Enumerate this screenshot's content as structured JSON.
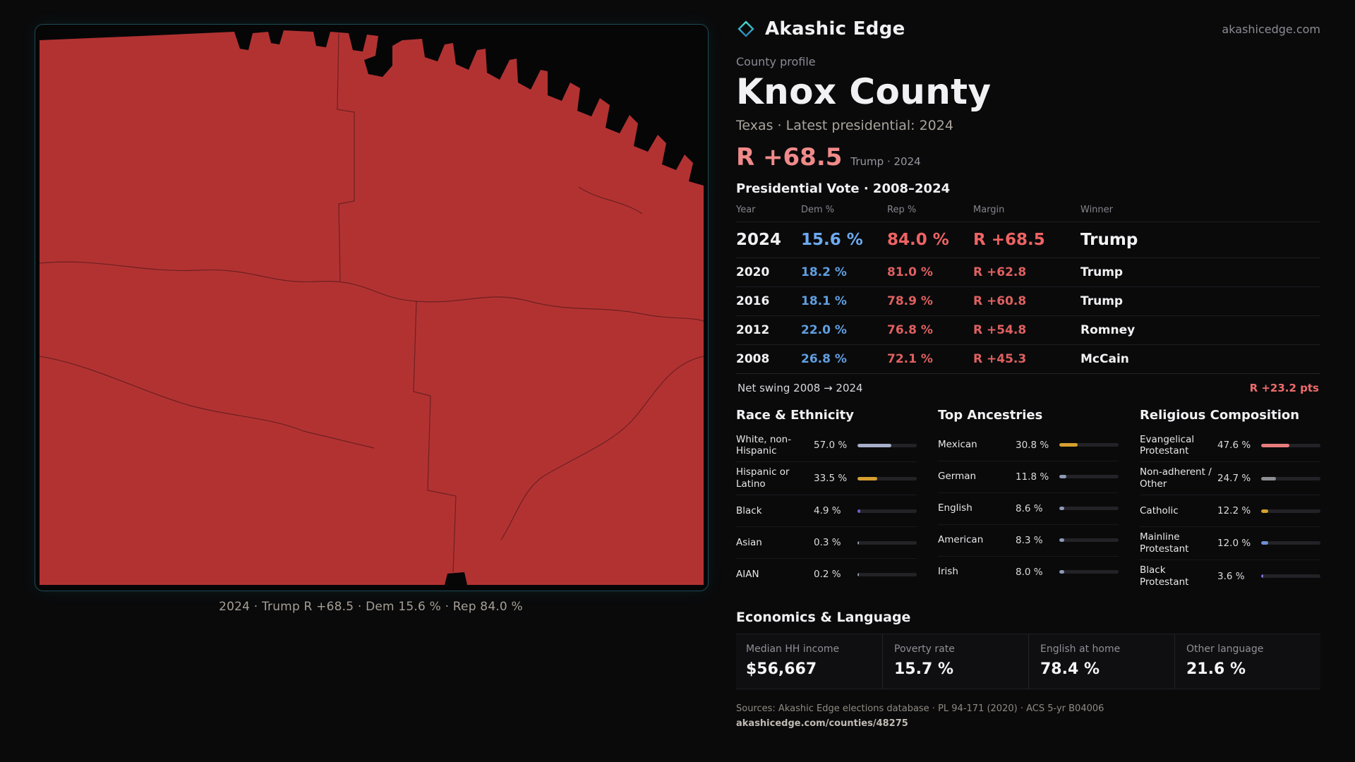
{
  "colors": {
    "accent": "#f08a8a",
    "dem_blue": "#5f9fe0",
    "rep_red": "#e06060",
    "map_fill": "#b23232",
    "teal": "#3ad6c8",
    "page_bg": "#0a0a0b"
  },
  "brand": {
    "name": "Akashic Edge",
    "domain": "akashicedge.com"
  },
  "map": {
    "fill": "#b23232",
    "caption": "2024 · Trump R +68.5 · Dem 15.6 % · Rep 84.0 %"
  },
  "profile": {
    "kicker": "County profile",
    "title": "Knox County",
    "subtitle": "Texas · Latest presidential: 2024",
    "headline_margin": "R +68.5",
    "headline_note": "Trump · 2024"
  },
  "vote_table": {
    "title": "Presidential Vote · 2008–2024",
    "columns": [
      "Year",
      "Dem %",
      "Rep %",
      "Margin",
      "Winner"
    ],
    "rows": [
      {
        "year": "2024",
        "dem": "15.6 %",
        "rep": "84.0 %",
        "margin": "R +68.5",
        "winner": "Trump",
        "highlight": true
      },
      {
        "year": "2020",
        "dem": "18.2 %",
        "rep": "81.0 %",
        "margin": "R +62.8",
        "winner": "Trump",
        "highlight": false
      },
      {
        "year": "2016",
        "dem": "18.1 %",
        "rep": "78.9 %",
        "margin": "R +60.8",
        "winner": "Trump",
        "highlight": false
      },
      {
        "year": "2012",
        "dem": "22.0 %",
        "rep": "76.8 %",
        "margin": "R +54.8",
        "winner": "Romney",
        "highlight": false
      },
      {
        "year": "2008",
        "dem": "26.8 %",
        "rep": "72.1 %",
        "margin": "R +45.3",
        "winner": "McCain",
        "highlight": false
      }
    ],
    "net_swing_label": "Net swing 2008 → 2024",
    "net_swing_value": "R +23.2 pts"
  },
  "demographics": [
    {
      "title": "Race & Ethnicity",
      "rows": [
        {
          "label": "White, non-Hispanic",
          "value": "57.0 %",
          "pct": 57.0,
          "color": "#a6aec9"
        },
        {
          "label": "Hispanic or Latino",
          "value": "33.5 %",
          "pct": 33.5,
          "color": "#d7a02f"
        },
        {
          "label": "Black",
          "value": "4.9 %",
          "pct": 4.9,
          "color": "#6f5fd0"
        },
        {
          "label": "Asian",
          "value": "0.3 %",
          "pct": 0.3,
          "color": "#8e9ab6"
        },
        {
          "label": "AIAN",
          "value": "0.2 %",
          "pct": 0.2,
          "color": "#8e9ab6"
        }
      ]
    },
    {
      "title": "Top Ancestries",
      "rows": [
        {
          "label": "Mexican",
          "value": "30.8 %",
          "pct": 30.8,
          "color": "#d7a02f"
        },
        {
          "label": "German",
          "value": "11.8 %",
          "pct": 11.8,
          "color": "#8e9ab6"
        },
        {
          "label": "English",
          "value": "8.6 %",
          "pct": 8.6,
          "color": "#8e9ab6"
        },
        {
          "label": "American",
          "value": "8.3 %",
          "pct": 8.3,
          "color": "#8e9ab6"
        },
        {
          "label": "Irish",
          "value": "8.0 %",
          "pct": 8.0,
          "color": "#8e9ab6"
        }
      ]
    },
    {
      "title": "Religious Composition",
      "rows": [
        {
          "label": "Evangelical Protestant",
          "value": "47.6 %",
          "pct": 47.6,
          "color": "#e87c7c"
        },
        {
          "label": "Non-adherent / Other",
          "value": "24.7 %",
          "pct": 24.7,
          "color": "#8d8d96"
        },
        {
          "label": "Catholic",
          "value": "12.2 %",
          "pct": 12.2,
          "color": "#d7a02f"
        },
        {
          "label": "Mainline Protestant",
          "value": "12.0 %",
          "pct": 12.0,
          "color": "#6e8fd6"
        },
        {
          "label": "Black Protestant",
          "value": "3.6 %",
          "pct": 3.6,
          "color": "#7d6bd9"
        }
      ]
    }
  ],
  "economics": {
    "title": "Economics & Language",
    "stats": [
      {
        "label": "Median HH income",
        "value": "$56,667"
      },
      {
        "label": "Poverty rate",
        "value": "15.7 %"
      },
      {
        "label": "English at home",
        "value": "78.4 %"
      },
      {
        "label": "Other language",
        "value": "21.6 %"
      }
    ]
  },
  "footer": {
    "sources": "Sources: Akashic Edge elections database · PL 94-171 (2020) · ACS 5-yr B04006",
    "url": "akashicedge.com/counties/48275"
  }
}
